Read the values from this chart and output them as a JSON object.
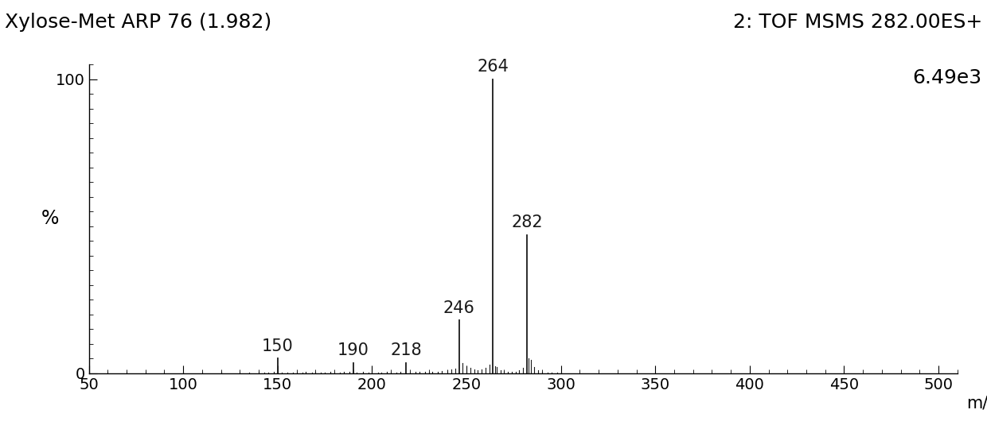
{
  "title_left": "Xylose-Met ARP 76 (1.982)",
  "title_right_line1": "2: TOF MSMS 282.00ES+",
  "title_right_line2": "6.49e3",
  "xlabel": "m/z",
  "ylabel": "%",
  "xlim": [
    50,
    510
  ],
  "ylim": [
    0,
    105
  ],
  "xticks": [
    50,
    100,
    150,
    200,
    250,
    300,
    350,
    400,
    450,
    500
  ],
  "yticks": [
    0,
    100
  ],
  "peaks": [
    {
      "mz": 150,
      "intensity": 5.0,
      "label": "150"
    },
    {
      "mz": 190,
      "intensity": 3.5,
      "label": "190"
    },
    {
      "mz": 218,
      "intensity": 3.5,
      "label": "218"
    },
    {
      "mz": 246,
      "intensity": 18.0,
      "label": "246"
    },
    {
      "mz": 264,
      "intensity": 100.0,
      "label": "264"
    },
    {
      "mz": 282,
      "intensity": 47.0,
      "label": "282"
    }
  ],
  "noise_peaks": [
    {
      "mz": 60,
      "intensity": 0.3
    },
    {
      "mz": 70,
      "intensity": 0.2
    },
    {
      "mz": 80,
      "intensity": 0.2
    },
    {
      "mz": 90,
      "intensity": 0.3
    },
    {
      "mz": 100,
      "intensity": 0.2
    },
    {
      "mz": 110,
      "intensity": 0.3
    },
    {
      "mz": 120,
      "intensity": 0.4
    },
    {
      "mz": 130,
      "intensity": 0.3
    },
    {
      "mz": 135,
      "intensity": 0.2
    },
    {
      "mz": 140,
      "intensity": 0.5
    },
    {
      "mz": 143,
      "intensity": 0.3
    },
    {
      "mz": 145,
      "intensity": 0.3
    },
    {
      "mz": 148,
      "intensity": 0.4
    },
    {
      "mz": 152,
      "intensity": 0.3
    },
    {
      "mz": 155,
      "intensity": 0.3
    },
    {
      "mz": 158,
      "intensity": 0.2
    },
    {
      "mz": 160,
      "intensity": 0.3
    },
    {
      "mz": 163,
      "intensity": 0.3
    },
    {
      "mz": 165,
      "intensity": 0.4
    },
    {
      "mz": 168,
      "intensity": 0.3
    },
    {
      "mz": 170,
      "intensity": 0.4
    },
    {
      "mz": 173,
      "intensity": 0.3
    },
    {
      "mz": 175,
      "intensity": 0.3
    },
    {
      "mz": 178,
      "intensity": 0.4
    },
    {
      "mz": 180,
      "intensity": 0.3
    },
    {
      "mz": 183,
      "intensity": 0.3
    },
    {
      "mz": 185,
      "intensity": 0.5
    },
    {
      "mz": 188,
      "intensity": 0.4
    },
    {
      "mz": 192,
      "intensity": 0.3
    },
    {
      "mz": 195,
      "intensity": 0.4
    },
    {
      "mz": 198,
      "intensity": 0.3
    },
    {
      "mz": 200,
      "intensity": 0.4
    },
    {
      "mz": 203,
      "intensity": 0.3
    },
    {
      "mz": 205,
      "intensity": 0.3
    },
    {
      "mz": 208,
      "intensity": 0.4
    },
    {
      "mz": 210,
      "intensity": 0.3
    },
    {
      "mz": 213,
      "intensity": 0.3
    },
    {
      "mz": 215,
      "intensity": 0.4
    },
    {
      "mz": 220,
      "intensity": 0.3
    },
    {
      "mz": 223,
      "intensity": 0.4
    },
    {
      "mz": 225,
      "intensity": 0.5
    },
    {
      "mz": 228,
      "intensity": 0.5
    },
    {
      "mz": 230,
      "intensity": 0.4
    },
    {
      "mz": 232,
      "intensity": 0.5
    },
    {
      "mz": 235,
      "intensity": 0.6
    },
    {
      "mz": 237,
      "intensity": 0.7
    },
    {
      "mz": 240,
      "intensity": 0.9
    },
    {
      "mz": 242,
      "intensity": 1.2
    },
    {
      "mz": 244,
      "intensity": 1.5
    },
    {
      "mz": 248,
      "intensity": 3.5
    },
    {
      "mz": 250,
      "intensity": 2.5
    },
    {
      "mz": 252,
      "intensity": 1.8
    },
    {
      "mz": 254,
      "intensity": 1.2
    },
    {
      "mz": 256,
      "intensity": 1.0
    },
    {
      "mz": 258,
      "intensity": 1.3
    },
    {
      "mz": 260,
      "intensity": 1.8
    },
    {
      "mz": 262,
      "intensity": 3.0
    },
    {
      "mz": 265,
      "intensity": 2.5
    },
    {
      "mz": 266,
      "intensity": 2.0
    },
    {
      "mz": 268,
      "intensity": 1.0
    },
    {
      "mz": 270,
      "intensity": 0.8
    },
    {
      "mz": 272,
      "intensity": 0.6
    },
    {
      "mz": 274,
      "intensity": 0.5
    },
    {
      "mz": 276,
      "intensity": 0.6
    },
    {
      "mz": 278,
      "intensity": 1.0
    },
    {
      "mz": 280,
      "intensity": 1.8
    },
    {
      "mz": 283,
      "intensity": 5.0
    },
    {
      "mz": 284,
      "intensity": 4.5
    },
    {
      "mz": 286,
      "intensity": 2.0
    },
    {
      "mz": 288,
      "intensity": 1.0
    },
    {
      "mz": 290,
      "intensity": 0.5
    },
    {
      "mz": 293,
      "intensity": 0.3
    },
    {
      "mz": 295,
      "intensity": 0.3
    },
    {
      "mz": 298,
      "intensity": 0.3
    },
    {
      "mz": 300,
      "intensity": 0.3
    }
  ],
  "line_color": "#1a1a1a",
  "bg_color": "#ffffff",
  "title_fontsize": 18,
  "label_fontsize": 15,
  "tick_fontsize": 14,
  "peak_label_fontsize": 15
}
